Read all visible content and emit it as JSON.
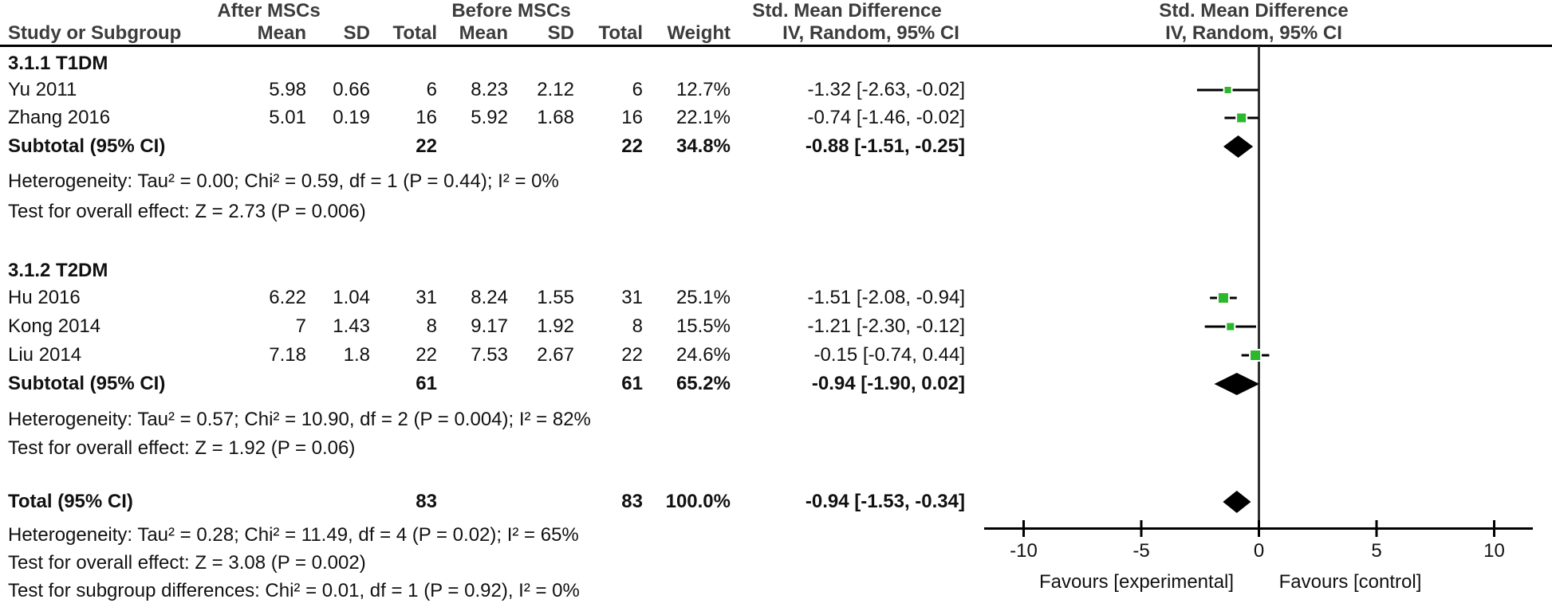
{
  "figure": {
    "kind": "forest-plot",
    "effect_header_line1": "Std. Mean Difference",
    "effect_header_line2": "IV, Random, 95% CI"
  },
  "header": {
    "group_after": "After MSCs",
    "group_before": "Before MSCs",
    "smd_left_line1": "Std. Mean Difference",
    "smd_left_line2": "IV, Random, 95% CI",
    "smd_right_line1": "Std. Mean Difference",
    "smd_right_line2": "IV, Random, 95% CI",
    "col_study": "Study or Subgroup",
    "col_mean1": "Mean",
    "col_sd1": "SD",
    "col_total1": "Total",
    "col_mean2": "Mean",
    "col_sd2": "SD",
    "col_total2": "Total",
    "col_weight": "Weight"
  },
  "rows": [
    {
      "type": "group",
      "label": "3.1.1 T1DM"
    },
    {
      "type": "study",
      "label": "Yu  2011",
      "mean1": "5.98",
      "sd1": "0.66",
      "total1": "6",
      "mean2": "8.23",
      "sd2": "2.12",
      "total2": "6",
      "weight": "12.7%",
      "ci": "-1.32 [-2.63, -0.02]"
    },
    {
      "type": "study",
      "label": "Zhang 2016",
      "mean1": "5.01",
      "sd1": "0.19",
      "total1": "16",
      "mean2": "5.92",
      "sd2": "1.68",
      "total2": "16",
      "weight": "22.1%",
      "ci": "-0.74 [-1.46, -0.02]"
    },
    {
      "type": "subtotal",
      "label": "Subtotal (95% CI)",
      "total1": "22",
      "total2": "22",
      "weight": "34.8%",
      "ci": "-0.88 [-1.51, -0.25]"
    },
    {
      "type": "text",
      "label": "Heterogeneity: Tau² = 0.00; Chi² = 0.59, df = 1 (P = 0.44); I² = 0%"
    },
    {
      "type": "text",
      "label": "Test for overall effect: Z = 2.73 (P = 0.006)"
    },
    {
      "type": "group",
      "label": "3.1.2 T2DM"
    },
    {
      "type": "study",
      "label": "Hu 2016",
      "mean1": "6.22",
      "sd1": "1.04",
      "total1": "31",
      "mean2": "8.24",
      "sd2": "1.55",
      "total2": "31",
      "weight": "25.1%",
      "ci": "-1.51 [-2.08, -0.94]"
    },
    {
      "type": "study",
      "label": "Kong 2014",
      "mean1": "7",
      "sd1": "1.43",
      "total1": "8",
      "mean2": "9.17",
      "sd2": "1.92",
      "total2": "8",
      "weight": "15.5%",
      "ci": "-1.21 [-2.30, -0.12]"
    },
    {
      "type": "study",
      "label": "Liu 2014",
      "mean1": "7.18",
      "sd1": "1.8",
      "total1": "22",
      "mean2": "7.53",
      "sd2": "2.67",
      "total2": "22",
      "weight": "24.6%",
      "ci": "-0.15 [-0.74, 0.44]"
    },
    {
      "type": "subtotal",
      "label": "Subtotal (95% CI)",
      "total1": "61",
      "total2": "61",
      "weight": "65.2%",
      "ci": "-0.94 [-1.90, 0.02]"
    },
    {
      "type": "text",
      "label": "Heterogeneity: Tau² = 0.57; Chi² = 10.90, df = 2 (P = 0.004); I² = 82%"
    },
    {
      "type": "text",
      "label": "Test for overall effect: Z = 1.92 (P = 0.06)"
    },
    {
      "type": "subtotal",
      "label": "Total (95% CI)",
      "total1": "83",
      "total2": "83",
      "weight": "100.0%",
      "ci": "-0.94 [-1.53, -0.34]"
    },
    {
      "type": "text",
      "label": "Heterogeneity: Tau² = 0.28; Chi² = 11.49, df = 4 (P = 0.02); I² = 65%"
    },
    {
      "type": "text",
      "label": "Test for overall effect: Z = 3.08 (P = 0.002)"
    },
    {
      "type": "text",
      "label": "Test for subgroup differences: Chi² = 0.01, df = 1 (P = 0.92), I² = 0%"
    }
  ],
  "chart_data": {
    "type": "forest",
    "effect_measure": "Std. Mean Difference",
    "model": "IV, Random, 95% CI",
    "x_axis": {
      "ticks": [
        -10,
        -5,
        0,
        5,
        10
      ],
      "range": [
        -11.7,
        11.6
      ],
      "label_left": "Favours [experimental]",
      "label_right": "Favours [control]"
    },
    "subgroups": [
      {
        "name": "3.1.1 T1DM",
        "studies": [
          {
            "name": "Yu 2011",
            "smd": -1.32,
            "ci_low": -2.63,
            "ci_high": -0.02,
            "weight_pct": 12.7
          },
          {
            "name": "Zhang 2016",
            "smd": -0.74,
            "ci_low": -1.46,
            "ci_high": -0.02,
            "weight_pct": 22.1
          }
        ],
        "subtotal": {
          "smd": -0.88,
          "ci_low": -1.51,
          "ci_high": -0.25,
          "weight_pct": 34.8,
          "heterogeneity": "Tau² = 0.00; Chi² = 0.59, df = 1 (P = 0.44); I² = 0%",
          "overall_effect": "Z = 2.73 (P = 0.006)"
        }
      },
      {
        "name": "3.1.2 T2DM",
        "studies": [
          {
            "name": "Hu 2016",
            "smd": -1.51,
            "ci_low": -2.08,
            "ci_high": -0.94,
            "weight_pct": 25.1
          },
          {
            "name": "Kong 2014",
            "smd": -1.21,
            "ci_low": -2.3,
            "ci_high": -0.12,
            "weight_pct": 15.5
          },
          {
            "name": "Liu 2014",
            "smd": -0.15,
            "ci_low": -0.74,
            "ci_high": 0.44,
            "weight_pct": 24.6
          }
        ],
        "subtotal": {
          "smd": -0.94,
          "ci_low": -1.9,
          "ci_high": 0.02,
          "weight_pct": 65.2,
          "heterogeneity": "Tau² = 0.57; Chi² = 10.90, df = 2 (P = 0.004); I² = 82%",
          "overall_effect": "Z = 1.92 (P = 0.06)"
        }
      }
    ],
    "total": {
      "smd": -0.94,
      "ci_low": -1.53,
      "ci_high": -0.34,
      "weight_pct": 100.0,
      "heterogeneity": "Tau² = 0.28; Chi² = 11.49, df = 4 (P = 0.02); I² = 65%",
      "overall_effect": "Z = 3.08 (P = 0.002)",
      "subgroup_differences": "Chi² = 0.01, df = 1 (P = 0.92), I² = 0%"
    },
    "colors": {
      "study_marker": "#2cb72c",
      "ci_line": "#000000",
      "diamond": "#000000",
      "zero_line": "#333333"
    }
  }
}
